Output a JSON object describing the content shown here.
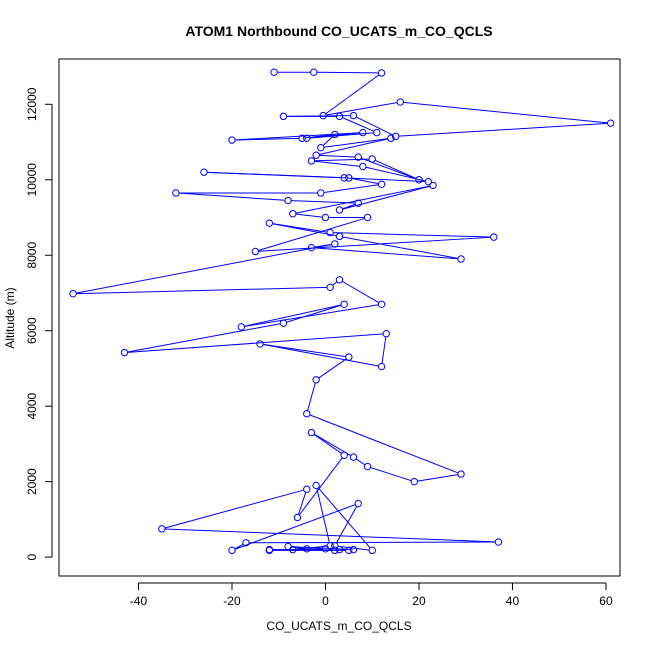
{
  "chart_data": {
    "type": "line",
    "title": "ATOM1 Northbound CO_UCATS_m_CO_QCLS",
    "xlabel": "CO_UCATS_m_CO_QCLS",
    "ylabel": "Altitude (m)",
    "xlim": [
      -57,
      63
    ],
    "ylim": [
      -500,
      13200
    ],
    "xticks": [
      -40,
      -20,
      0,
      20,
      40,
      60
    ],
    "yticks": [
      0,
      2000,
      4000,
      6000,
      8000,
      10000,
      12000
    ],
    "grid": false,
    "markers": "open-circle",
    "colors": {
      "series": "#0000ff",
      "axis": "#000000",
      "background": "#ffffff"
    },
    "series": [
      {
        "name": "",
        "x": [
          -11,
          -2.5,
          12,
          -0.5,
          16,
          61,
          15,
          6,
          -9,
          3,
          11,
          -4,
          8,
          -20,
          -5,
          2,
          -1,
          14,
          -2,
          7,
          20,
          10,
          -3,
          8,
          22,
          4,
          -26,
          5,
          12,
          -1,
          -32,
          -8,
          7,
          3,
          23,
          -7,
          0,
          9,
          -15,
          36,
          1,
          -12,
          3,
          29,
          -3,
          2,
          -54,
          1,
          3,
          12,
          -18,
          4,
          -9,
          -43,
          13,
          12,
          -14,
          5,
          -2,
          -4,
          29,
          19,
          9,
          6,
          -3,
          4,
          -6,
          -4,
          -35,
          37,
          -17,
          -20,
          7,
          2,
          10,
          -2,
          1,
          -7,
          -12,
          2,
          -4,
          -8,
          6,
          0,
          -12,
          5,
          3
        ],
        "y": [
          12850,
          12850,
          12830,
          11700,
          12060,
          11500,
          11150,
          11700,
          11680,
          11680,
          11250,
          11100,
          11250,
          11050,
          11100,
          11200,
          10850,
          11100,
          10650,
          10600,
          10000,
          10550,
          10500,
          10350,
          9950,
          10050,
          10200,
          10050,
          9880,
          9650,
          9650,
          9450,
          9380,
          9200,
          9850,
          9100,
          9000,
          9000,
          8100,
          8480,
          8600,
          8850,
          8500,
          7900,
          8200,
          8300,
          6980,
          7150,
          7350,
          6700,
          6100,
          6700,
          6200,
          5420,
          5920,
          5050,
          5650,
          5300,
          4700,
          3800,
          2200,
          2000,
          2400,
          2650,
          3300,
          2700,
          1050,
          1800,
          750,
          400,
          380,
          180,
          1420,
          300,
          180,
          1900,
          300,
          200,
          200,
          180,
          220,
          280,
          200,
          220,
          180,
          180,
          200
        ]
      }
    ]
  }
}
